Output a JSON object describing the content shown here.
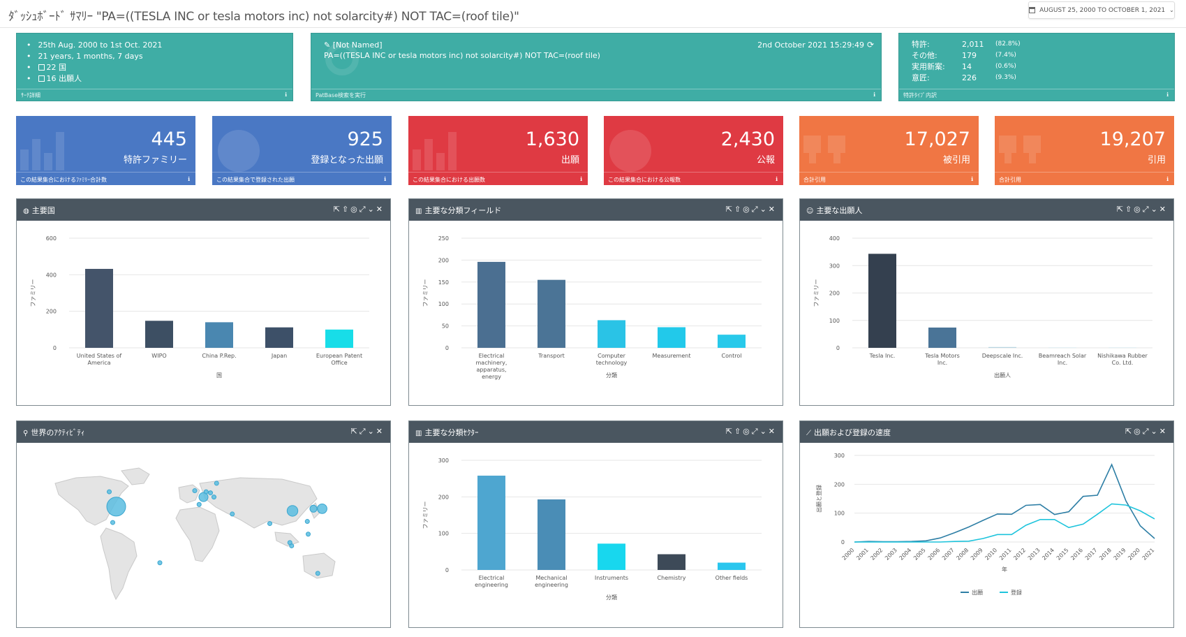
{
  "header": {
    "title": "ﾀﾞｯｼｭﾎﾞｰﾄﾞ ｻﾏﾘｰ \"PA=((TESLA INC or tesla motors inc) not solarcity#) NOT TAC=(roof tile)\"",
    "date_range": "AUGUST 25, 2000 TO OCTOBER 1, 2021"
  },
  "search_details": {
    "lines": [
      "25th Aug. 2000 to 1st Oct. 2021",
      "21 years, 1 months, 7 days",
      "22 国",
      "16 出願人"
    ],
    "footer": "ｻｰﾁ詳細"
  },
  "query": {
    "name": "[Not Named]",
    "text": "PA=((TESLA INC or tesla motors inc) not solarcity#) NOT TAC=(roof tile)",
    "timestamp": "2nd October 2021 15:29:49",
    "footer": "PatBase検索を実行"
  },
  "patent_types": {
    "rows": [
      {
        "label": "特許:",
        "count": "2,011",
        "pct": "(82.8%)"
      },
      {
        "label": "その他:",
        "count": "179",
        "pct": "(7.4%)"
      },
      {
        "label": "実用新案:",
        "count": "14",
        "pct": "(0.6%)"
      },
      {
        "label": "意匠:",
        "count": "226",
        "pct": "(9.3%)"
      }
    ],
    "footer": "特許ﾀｲﾌﾟ内訳"
  },
  "kpis": [
    {
      "value": "445",
      "label": "特許ファミリー",
      "footer": "この結果集合におけるﾌｧﾐﾘｰ合計数",
      "color": "#4a78c4"
    },
    {
      "value": "925",
      "label": "登録となった出願",
      "footer": "この結果集合で登録された出願",
      "color": "#4a78c4"
    },
    {
      "value": "1,630",
      "label": "出願",
      "footer": "この結果集合における出願数",
      "color": "#df3a43"
    },
    {
      "value": "2,430",
      "label": "公報",
      "footer": "この結果集合における公報数",
      "color": "#df3a43"
    },
    {
      "value": "17,027",
      "label": "被引用",
      "footer": "合計引用",
      "color": "#f07644"
    },
    {
      "value": "19,207",
      "label": "引用",
      "footer": "合計引用",
      "color": "#f07644"
    }
  ],
  "panels": {
    "countries": {
      "title": "主要国"
    },
    "fields": {
      "title": "主要な分類フィールド"
    },
    "applicants": {
      "title": "主要な出願人"
    },
    "world": {
      "title": "世界のｱｸﾃｨﾋﾞﾃｨ"
    },
    "sectors": {
      "title": "主要な分類ｾｸﾀｰ"
    },
    "velocity": {
      "title": "出願および登録の速度"
    }
  },
  "chart_data": [
    {
      "id": "countries",
      "type": "bar",
      "categories": [
        "United States of America",
        "WIPO",
        "China P.Rep.",
        "Japan",
        "European Patent Office"
      ],
      "values": [
        432,
        148,
        140,
        112,
        100
      ],
      "colors": [
        "#44546a",
        "#3d4f63",
        "#4a87b0",
        "#3d5068",
        "#18dde8"
      ],
      "xlabel": "国",
      "ylabel": "ファミリー",
      "ylim": [
        0,
        600
      ],
      "yticks": [
        0,
        200,
        400,
        600
      ]
    },
    {
      "id": "fields",
      "type": "bar",
      "categories": [
        "Electrical machinery, apparatus, energy",
        "Transport",
        "Computer technology",
        "Measurement",
        "Control"
      ],
      "values": [
        196,
        155,
        63,
        47,
        30
      ],
      "colors": [
        "#4b6f91",
        "#4b7496",
        "#2ac3e6",
        "#22c9ea",
        "#28c9ea"
      ],
      "xlabel": "分類",
      "ylabel": "ファミリー",
      "ylim": [
        0,
        250
      ],
      "yticks": [
        0,
        50,
        100,
        150,
        200,
        250
      ]
    },
    {
      "id": "applicants",
      "type": "bar",
      "categories": [
        "Tesla Inc.",
        "Tesla Motors Inc.",
        "Deepscale Inc.",
        "Beamreach Solar Inc.",
        "Nishikawa Rubber Co. Ltd."
      ],
      "values": [
        343,
        74,
        3,
        1,
        1
      ],
      "colors": [
        "#34404f",
        "#4a7497",
        "#b8d4e0",
        "#c8e0e8",
        "#c8e0e8"
      ],
      "xlabel": "出願人",
      "ylabel": "ファミリー",
      "ylim": [
        0,
        400
      ],
      "yticks": [
        0,
        100,
        200,
        300,
        400
      ]
    },
    {
      "id": "sectors",
      "type": "bar",
      "categories": [
        "Electrical engineering",
        "Mechanical engineering",
        "Instruments",
        "Chemistry",
        "Other fields"
      ],
      "values": [
        258,
        193,
        72,
        43,
        20
      ],
      "colors": [
        "#4ea6d0",
        "#4a8db6",
        "#18d7ee",
        "#3d4a58",
        "#2ac6ee"
      ],
      "xlabel": "分類",
      "ylabel": "ファミリー",
      "ylim": [
        0,
        300
      ],
      "yticks": [
        0,
        100,
        200,
        300
      ]
    },
    {
      "id": "velocity",
      "type": "line",
      "x": [
        "2000",
        "2001",
        "2002",
        "2003",
        "2004",
        "2005",
        "2006",
        "2007",
        "2008",
        "2009",
        "2010",
        "2011",
        "2012",
        "2013",
        "2014",
        "2015",
        "2016",
        "2017",
        "2018",
        "2019",
        "2020",
        "2021"
      ],
      "series": [
        {
          "name": "出願",
          "color": "#2d7ea5",
          "values": [
            0,
            2,
            1,
            1,
            2,
            4,
            14,
            32,
            52,
            75,
            97,
            96,
            127,
            130,
            95,
            105,
            158,
            162,
            268,
            142,
            56,
            12
          ]
        },
        {
          "name": "登録",
          "color": "#1ec4dc",
          "values": [
            0,
            0,
            0,
            0,
            0,
            0,
            0,
            2,
            3,
            12,
            26,
            26,
            58,
            78,
            78,
            50,
            62,
            96,
            132,
            128,
            108,
            80
          ]
        }
      ],
      "xlabel": "年",
      "ylabel": "出願と登録",
      "ylim": [
        0,
        300
      ],
      "yticks": [
        0,
        100,
        200,
        300
      ]
    },
    {
      "id": "world",
      "type": "scatter",
      "points": [
        {
          "lon": -98,
          "lat": 38,
          "value": 432
        },
        {
          "lon": -106,
          "lat": 52,
          "value": 20
        },
        {
          "lon": -102,
          "lat": 23,
          "value": 5
        },
        {
          "lon": -8,
          "lat": 53,
          "value": 3
        },
        {
          "lon": -3,
          "lat": 40,
          "value": 3
        },
        {
          "lon": 10,
          "lat": 51,
          "value": 8
        },
        {
          "lon": 2,
          "lat": 47,
          "value": 100
        },
        {
          "lon": 5,
          "lat": 52,
          "value": 6
        },
        {
          "lon": 14,
          "lat": 47,
          "value": 4
        },
        {
          "lon": 17,
          "lat": 60,
          "value": 3
        },
        {
          "lon": 35,
          "lat": 31,
          "value": 3
        },
        {
          "lon": 78,
          "lat": 22,
          "value": 4
        },
        {
          "lon": 104,
          "lat": 34,
          "value": 140
        },
        {
          "lon": 128,
          "lat": 36,
          "value": 60
        },
        {
          "lon": 138,
          "lat": 36,
          "value": 112
        },
        {
          "lon": 121,
          "lat": 24,
          "value": 8
        },
        {
          "lon": 103,
          "lat": 1,
          "value": 4
        },
        {
          "lon": 101,
          "lat": 4,
          "value": 3
        },
        {
          "lon": 122,
          "lat": 12,
          "value": 3
        },
        {
          "lon": 133,
          "lat": -25,
          "value": 12
        },
        {
          "lon": -48,
          "lat": -15,
          "value": 3
        }
      ]
    }
  ]
}
